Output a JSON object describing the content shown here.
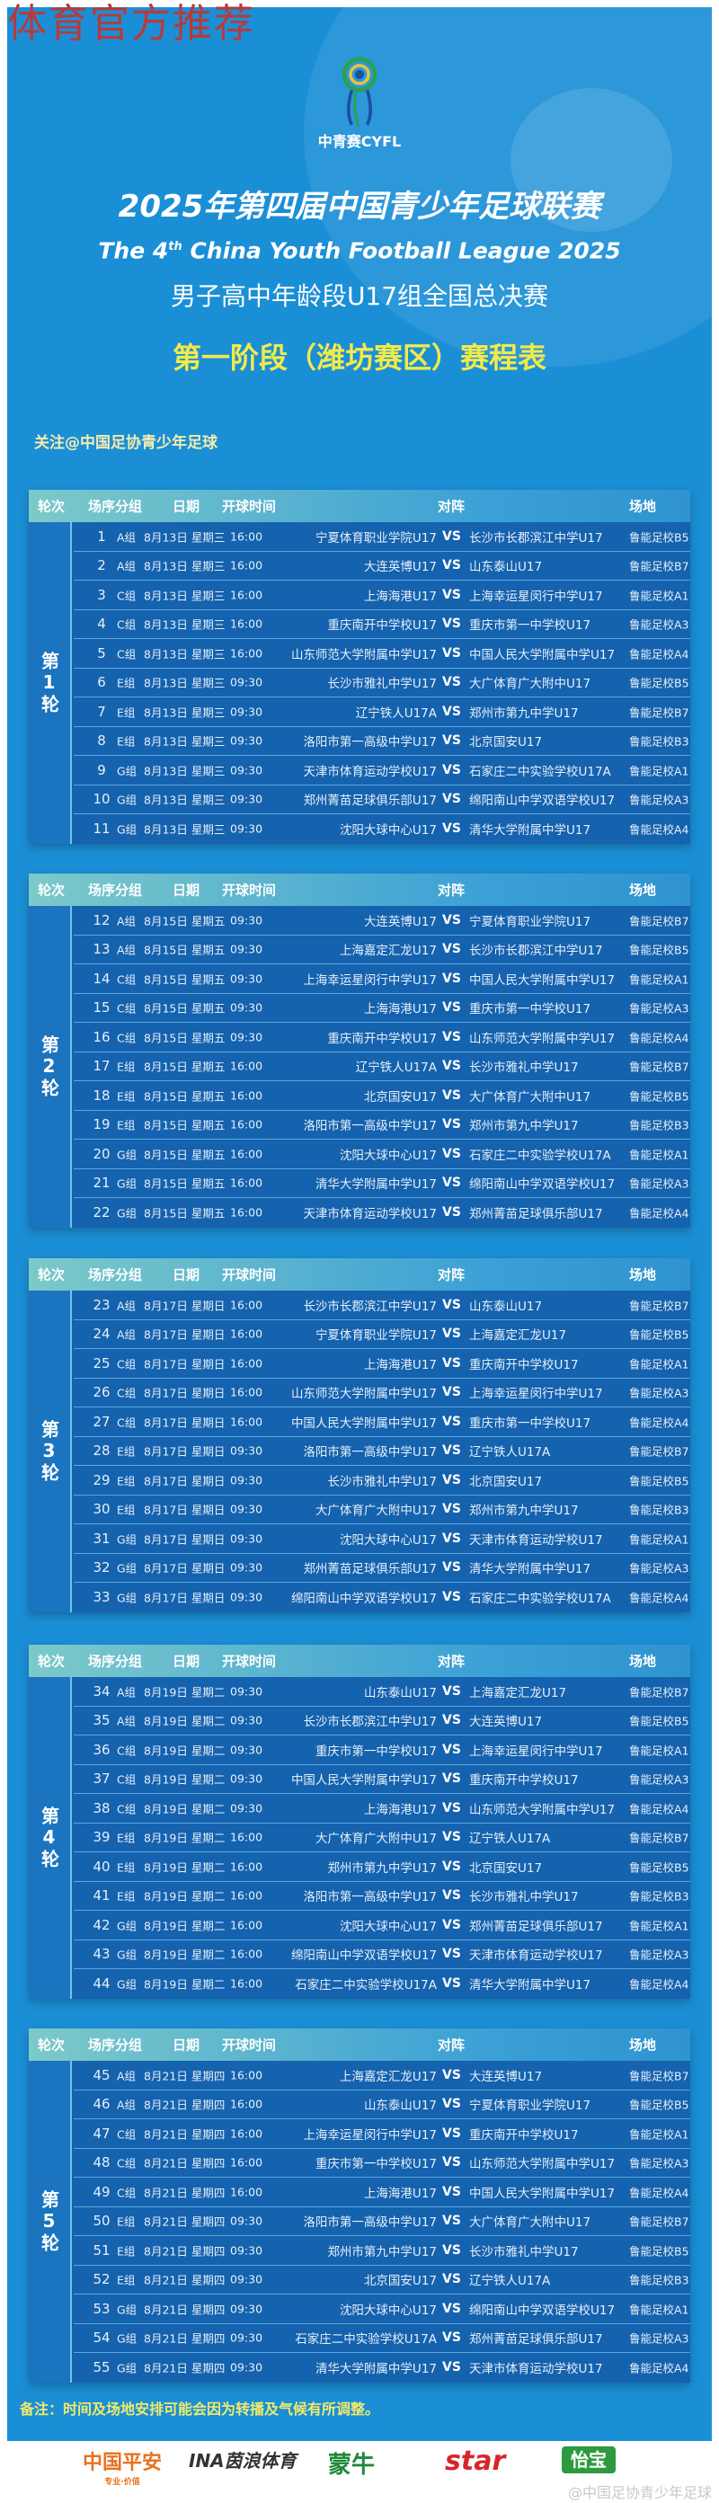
{
  "watermark": "体育官方推荐",
  "logo_text": "中青赛CYFL",
  "title": "2025年第四届中国青少年足球联赛",
  "title_en_pre": "The 4",
  "title_en_sup": "th",
  "title_en_post": " China Youth Football League 2025",
  "subtitle": "男子高中年龄段U17组全国总决赛",
  "stage_title": "第一阶段（潍坊赛区）赛程表",
  "follow": "关注@中国足协青少年足球",
  "headers": {
    "round": "轮次",
    "no": "场序",
    "group": "分组",
    "date": "日期",
    "time": "开球时间",
    "match": "对阵",
    "venue": "场地"
  },
  "vs": "VS",
  "rounds": [
    {
      "label": "第1轮",
      "matches": [
        {
          "n": "1",
          "g": "A组",
          "d": "8月13日 星期三",
          "t": "16:00",
          "h": "宁夏体育职业学院U17",
          "a": "长沙市长郡滨江中学U17",
          "v": "鲁能足校B5"
        },
        {
          "n": "2",
          "g": "A组",
          "d": "8月13日 星期三",
          "t": "16:00",
          "h": "大连英博U17",
          "a": "山东泰山U17",
          "v": "鲁能足校B7"
        },
        {
          "n": "3",
          "g": "C组",
          "d": "8月13日 星期三",
          "t": "16:00",
          "h": "上海海港U17",
          "a": "上海幸运星闵行中学U17",
          "v": "鲁能足校A1"
        },
        {
          "n": "4",
          "g": "C组",
          "d": "8月13日 星期三",
          "t": "16:00",
          "h": "重庆南开中学校U17",
          "a": "重庆市第一中学校U17",
          "v": "鲁能足校A3"
        },
        {
          "n": "5",
          "g": "C组",
          "d": "8月13日 星期三",
          "t": "16:00",
          "h": "山东师范大学附属中学U17",
          "a": "中国人民大学附属中学U17",
          "v": "鲁能足校A4"
        },
        {
          "n": "6",
          "g": "E组",
          "d": "8月13日 星期三",
          "t": "09:30",
          "h": "长沙市雅礼中学U17",
          "a": "大广体育广大附中U17",
          "v": "鲁能足校B5"
        },
        {
          "n": "7",
          "g": "E组",
          "d": "8月13日 星期三",
          "t": "09:30",
          "h": "辽宁铁人U17A",
          "a": "郑州市第九中学U17",
          "v": "鲁能足校B7"
        },
        {
          "n": "8",
          "g": "E组",
          "d": "8月13日 星期三",
          "t": "09:30",
          "h": "洛阳市第一高级中学U17",
          "a": "北京国安U17",
          "v": "鲁能足校B3"
        },
        {
          "n": "9",
          "g": "G组",
          "d": "8月13日 星期三",
          "t": "09:30",
          "h": "天津市体育运动学校U17",
          "a": "石家庄二中实验学校U17A",
          "v": "鲁能足校A1"
        },
        {
          "n": "10",
          "g": "G组",
          "d": "8月13日 星期三",
          "t": "09:30",
          "h": "郑州菁苗足球俱乐部U17",
          "a": "绵阳南山中学双语学校U17",
          "v": "鲁能足校A3"
        },
        {
          "n": "11",
          "g": "G组",
          "d": "8月13日 星期三",
          "t": "09:30",
          "h": "沈阳大球中心U17",
          "a": "清华大学附属中学U17",
          "v": "鲁能足校A4"
        }
      ]
    },
    {
      "label": "第2轮",
      "matches": [
        {
          "n": "12",
          "g": "A组",
          "d": "8月15日 星期五",
          "t": "09:30",
          "h": "大连英博U17",
          "a": "宁夏体育职业学院U17",
          "v": "鲁能足校B7"
        },
        {
          "n": "13",
          "g": "A组",
          "d": "8月15日 星期五",
          "t": "09:30",
          "h": "上海嘉定汇龙U17",
          "a": "长沙市长郡滨江中学U17",
          "v": "鲁能足校B5"
        },
        {
          "n": "14",
          "g": "C组",
          "d": "8月15日 星期五",
          "t": "09:30",
          "h": "上海幸运星闵行中学U17",
          "a": "中国人民大学附属中学U17",
          "v": "鲁能足校A1"
        },
        {
          "n": "15",
          "g": "C组",
          "d": "8月15日 星期五",
          "t": "09:30",
          "h": "上海海港U17",
          "a": "重庆市第一中学校U17",
          "v": "鲁能足校A3"
        },
        {
          "n": "16",
          "g": "C组",
          "d": "8月15日 星期五",
          "t": "09:30",
          "h": "重庆南开中学校U17",
          "a": "山东师范大学附属中学U17",
          "v": "鲁能足校A4"
        },
        {
          "n": "17",
          "g": "E组",
          "d": "8月15日 星期五",
          "t": "16:00",
          "h": "辽宁铁人U17A",
          "a": "长沙市雅礼中学U17",
          "v": "鲁能足校B7"
        },
        {
          "n": "18",
          "g": "E组",
          "d": "8月15日 星期五",
          "t": "16:00",
          "h": "北京国安U17",
          "a": "大广体育广大附中U17",
          "v": "鲁能足校B5"
        },
        {
          "n": "19",
          "g": "E组",
          "d": "8月15日 星期五",
          "t": "16:00",
          "h": "洛阳市第一高级中学U17",
          "a": "郑州市第九中学U17",
          "v": "鲁能足校B3"
        },
        {
          "n": "20",
          "g": "G组",
          "d": "8月15日 星期五",
          "t": "16:00",
          "h": "沈阳大球中心U17",
          "a": "石家庄二中实验学校U17A",
          "v": "鲁能足校A1"
        },
        {
          "n": "21",
          "g": "G组",
          "d": "8月15日 星期五",
          "t": "16:00",
          "h": "清华大学附属中学U17",
          "a": "绵阳南山中学双语学校U17",
          "v": "鲁能足校A3"
        },
        {
          "n": "22",
          "g": "G组",
          "d": "8月15日 星期五",
          "t": "16:00",
          "h": "天津市体育运动学校U17",
          "a": "郑州菁苗足球俱乐部U17",
          "v": "鲁能足校A4"
        }
      ]
    },
    {
      "label": "第3轮",
      "matches": [
        {
          "n": "23",
          "g": "A组",
          "d": "8月17日 星期日",
          "t": "16:00",
          "h": "长沙市长郡滨江中学U17",
          "a": "山东泰山U17",
          "v": "鲁能足校B7"
        },
        {
          "n": "24",
          "g": "A组",
          "d": "8月17日 星期日",
          "t": "16:00",
          "h": "宁夏体育职业学院U17",
          "a": "上海嘉定汇龙U17",
          "v": "鲁能足校B5"
        },
        {
          "n": "25",
          "g": "C组",
          "d": "8月17日 星期日",
          "t": "16:00",
          "h": "上海海港U17",
          "a": "重庆南开中学校U17",
          "v": "鲁能足校A1"
        },
        {
          "n": "26",
          "g": "C组",
          "d": "8月17日 星期日",
          "t": "16:00",
          "h": "山东师范大学附属中学U17",
          "a": "上海幸运星闵行中学U17",
          "v": "鲁能足校A3"
        },
        {
          "n": "27",
          "g": "C组",
          "d": "8月17日 星期日",
          "t": "16:00",
          "h": "中国人民大学附属中学U17",
          "a": "重庆市第一中学校U17",
          "v": "鲁能足校A4"
        },
        {
          "n": "28",
          "g": "E组",
          "d": "8月17日 星期日",
          "t": "09:30",
          "h": "洛阳市第一高级中学U17",
          "a": "辽宁铁人U17A",
          "v": "鲁能足校B7"
        },
        {
          "n": "29",
          "g": "E组",
          "d": "8月17日 星期日",
          "t": "09:30",
          "h": "长沙市雅礼中学U17",
          "a": "北京国安U17",
          "v": "鲁能足校B5"
        },
        {
          "n": "30",
          "g": "E组",
          "d": "8月17日 星期日",
          "t": "09:30",
          "h": "大广体育广大附中U17",
          "a": "郑州市第九中学U17",
          "v": "鲁能足校B3"
        },
        {
          "n": "31",
          "g": "G组",
          "d": "8月17日 星期日",
          "t": "09:30",
          "h": "沈阳大球中心U17",
          "a": "天津市体育运动学校U17",
          "v": "鲁能足校A1"
        },
        {
          "n": "32",
          "g": "G组",
          "d": "8月17日 星期日",
          "t": "09:30",
          "h": "郑州菁苗足球俱乐部U17",
          "a": "清华大学附属中学U17",
          "v": "鲁能足校A3"
        },
        {
          "n": "33",
          "g": "G组",
          "d": "8月17日 星期日",
          "t": "09:30",
          "h": "绵阳南山中学双语学校U17",
          "a": "石家庄二中实验学校U17A",
          "v": "鲁能足校A4"
        }
      ]
    },
    {
      "label": "第4轮",
      "matches": [
        {
          "n": "34",
          "g": "A组",
          "d": "8月19日 星期二",
          "t": "09:30",
          "h": "山东泰山U17",
          "a": "上海嘉定汇龙U17",
          "v": "鲁能足校B7"
        },
        {
          "n": "35",
          "g": "A组",
          "d": "8月19日 星期二",
          "t": "09:30",
          "h": "长沙市长郡滨江中学U17",
          "a": "大连英博U17",
          "v": "鲁能足校B5"
        },
        {
          "n": "36",
          "g": "C组",
          "d": "8月19日 星期二",
          "t": "09:30",
          "h": "重庆市第一中学校U17",
          "a": "上海幸运星闵行中学U17",
          "v": "鲁能足校A1"
        },
        {
          "n": "37",
          "g": "C组",
          "d": "8月19日 星期二",
          "t": "09:30",
          "h": "中国人民大学附属中学U17",
          "a": "重庆南开中学校U17",
          "v": "鲁能足校A3"
        },
        {
          "n": "38",
          "g": "C组",
          "d": "8月19日 星期二",
          "t": "09:30",
          "h": "上海海港U17",
          "a": "山东师范大学附属中学U17",
          "v": "鲁能足校A4"
        },
        {
          "n": "39",
          "g": "E组",
          "d": "8月19日 星期二",
          "t": "16:00",
          "h": "大广体育广大附中U17",
          "a": "辽宁铁人U17A",
          "v": "鲁能足校B7"
        },
        {
          "n": "40",
          "g": "E组",
          "d": "8月19日 星期二",
          "t": "16:00",
          "h": "郑州市第九中学U17",
          "a": "北京国安U17",
          "v": "鲁能足校B5"
        },
        {
          "n": "41",
          "g": "E组",
          "d": "8月19日 星期二",
          "t": "16:00",
          "h": "洛阳市第一高级中学U17",
          "a": "长沙市雅礼中学U17",
          "v": "鲁能足校B3"
        },
        {
          "n": "42",
          "g": "G组",
          "d": "8月19日 星期二",
          "t": "16:00",
          "h": "沈阳大球中心U17",
          "a": "郑州菁苗足球俱乐部U17",
          "v": "鲁能足校A1"
        },
        {
          "n": "43",
          "g": "G组",
          "d": "8月19日 星期二",
          "t": "16:00",
          "h": "绵阳南山中学双语学校U17",
          "a": "天津市体育运动学校U17",
          "v": "鲁能足校A3"
        },
        {
          "n": "44",
          "g": "G组",
          "d": "8月19日 星期二",
          "t": "16:00",
          "h": "石家庄二中实验学校U17A",
          "a": "清华大学附属中学U17",
          "v": "鲁能足校A4"
        }
      ]
    },
    {
      "label": "第5轮",
      "matches": [
        {
          "n": "45",
          "g": "A组",
          "d": "8月21日 星期四",
          "t": "16:00",
          "h": "上海嘉定汇龙U17",
          "a": "大连英博U17",
          "v": "鲁能足校B7"
        },
        {
          "n": "46",
          "g": "A组",
          "d": "8月21日 星期四",
          "t": "16:00",
          "h": "山东泰山U17",
          "a": "宁夏体育职业学院U17",
          "v": "鲁能足校B5"
        },
        {
          "n": "47",
          "g": "C组",
          "d": "8月21日 星期四",
          "t": "16:00",
          "h": "上海幸运星闵行中学U17",
          "a": "重庆南开中学校U17",
          "v": "鲁能足校A1"
        },
        {
          "n": "48",
          "g": "C组",
          "d": "8月21日 星期四",
          "t": "16:00",
          "h": "重庆市第一中学校U17",
          "a": "山东师范大学附属中学U17",
          "v": "鲁能足校A3"
        },
        {
          "n": "49",
          "g": "C组",
          "d": "8月21日 星期四",
          "t": "16:00",
          "h": "上海海港U17",
          "a": "中国人民大学附属中学U17",
          "v": "鲁能足校A4"
        },
        {
          "n": "50",
          "g": "E组",
          "d": "8月21日 星期四",
          "t": "09:30",
          "h": "洛阳市第一高级中学U17",
          "a": "大广体育广大附中U17",
          "v": "鲁能足校B7"
        },
        {
          "n": "51",
          "g": "E组",
          "d": "8月21日 星期四",
          "t": "09:30",
          "h": "郑州市第九中学U17",
          "a": "长沙市雅礼中学U17",
          "v": "鲁能足校B5"
        },
        {
          "n": "52",
          "g": "E组",
          "d": "8月21日 星期四",
          "t": "09:30",
          "h": "北京国安U17",
          "a": "辽宁铁人U17A",
          "v": "鲁能足校B3"
        },
        {
          "n": "53",
          "g": "G组",
          "d": "8月21日 星期四",
          "t": "09:30",
          "h": "沈阳大球中心U17",
          "a": "绵阳南山中学双语学校U17",
          "v": "鲁能足校A1"
        },
        {
          "n": "54",
          "g": "G组",
          "d": "8月21日 星期四",
          "t": "09:30",
          "h": "石家庄二中实验学校U17A",
          "a": "郑州菁苗足球俱乐部U17",
          "v": "鲁能足校A3"
        },
        {
          "n": "55",
          "g": "G组",
          "d": "8月21日 星期四",
          "t": "09:30",
          "h": "清华大学附属中学U17",
          "a": "天津市体育运动学校U17",
          "v": "鲁能足校A4"
        }
      ]
    }
  ],
  "remark": "备注：时间及场地安排可能会因为转播及气候有所调整。",
  "sponsors": [
    {
      "name": "中国平安",
      "tagline": "专业·价值",
      "color": "#e8711e"
    },
    {
      "name": "INA茵浪体育",
      "color": "#333333"
    },
    {
      "name": "蒙牛",
      "color": "#1f8a3a"
    },
    {
      "name": "star",
      "color": "#d8242a"
    },
    {
      "name": "怡宝",
      "color": "#2e9a3f"
    }
  ],
  "weibo_watermark": "@中国足协青少年足球",
  "colors": {
    "panel": "#1b8fd6",
    "row": "#1562ae",
    "stage_title": "#f2ea4a",
    "watermark": "#b83a3a"
  }
}
